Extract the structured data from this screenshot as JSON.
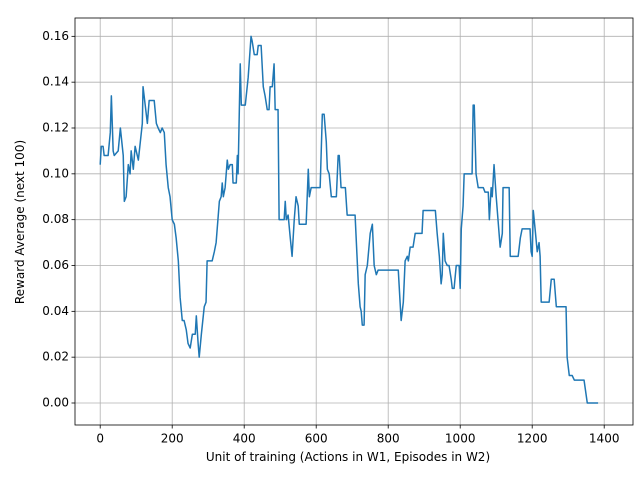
{
  "chart_data": {
    "type": "line",
    "x_label": "Unit of training (Actions in W1, Episodes in W2)",
    "y_label": "Reward Average (next 100)",
    "xlim": [
      -70,
      1480
    ],
    "ylim": [
      -0.0096,
      0.168
    ],
    "xticks": [
      0,
      200,
      400,
      600,
      800,
      1000,
      1200,
      1400
    ],
    "yticks": [
      {
        "value": 0,
        "label": "0.00"
      },
      {
        "value": 0.02,
        "label": "0.02"
      },
      {
        "value": 0.04,
        "label": "0.04"
      },
      {
        "value": 0.06,
        "label": "0.06"
      },
      {
        "value": 0.08,
        "label": "0.08"
      },
      {
        "value": 0.1,
        "label": "0.10"
      },
      {
        "value": 0.12,
        "label": "0.12"
      },
      {
        "value": 0.14,
        "label": "0.14"
      },
      {
        "value": 0.16,
        "label": "0.16"
      }
    ],
    "grid": true,
    "x": [
      0,
      3,
      8,
      11,
      22,
      28,
      31,
      36,
      39,
      50,
      56,
      64,
      67,
      72,
      78,
      83,
      86,
      92,
      97,
      106,
      117,
      119,
      125,
      131,
      136,
      150,
      156,
      161,
      167,
      172,
      178,
      183,
      189,
      194,
      200,
      206,
      211,
      217,
      222,
      228,
      233,
      239,
      244,
      250,
      256,
      264,
      267,
      272,
      275,
      281,
      289,
      294,
      297,
      311,
      317,
      322,
      331,
      336,
      339,
      342,
      347,
      353,
      356,
      361,
      367,
      369,
      378,
      381,
      383,
      389,
      392,
      403,
      411,
      419,
      422,
      428,
      436,
      439,
      447,
      453,
      458,
      464,
      469,
      472,
      478,
      483,
      486,
      494,
      497,
      511,
      514,
      517,
      522,
      528,
      533,
      539,
      544,
      550,
      553,
      572,
      578,
      581,
      586,
      611,
      617,
      622,
      628,
      631,
      636,
      642,
      656,
      661,
      664,
      669,
      681,
      686,
      708,
      711,
      717,
      722,
      725,
      728,
      733,
      736,
      742,
      750,
      756,
      761,
      767,
      772,
      828,
      833,
      836,
      842,
      847,
      853,
      856,
      861,
      869,
      875,
      894,
      897,
      931,
      936,
      942,
      947,
      950,
      953,
      958,
      964,
      969,
      975,
      978,
      983,
      989,
      997,
      1000,
      1003,
      1008,
      1011,
      1033,
      1036,
      1039,
      1044,
      1050,
      1064,
      1069,
      1078,
      1081,
      1086,
      1089,
      1094,
      1100,
      1106,
      1111,
      1117,
      1119,
      1136,
      1139,
      1161,
      1167,
      1172,
      1194,
      1197,
      1200,
      1203,
      1208,
      1214,
      1219,
      1222,
      1225,
      1247,
      1253,
      1261,
      1267,
      1294,
      1297,
      1303,
      1311,
      1317,
      1344,
      1353,
      1383
    ],
    "series": [
      {
        "color": "#1f77b4",
        "values": [
          0.104,
          0.112,
          0.112,
          0.108,
          0.108,
          0.118,
          0.134,
          0.11,
          0.108,
          0.11,
          0.12,
          0.108,
          0.088,
          0.09,
          0.104,
          0.1,
          0.11,
          0.102,
          0.112,
          0.106,
          0.122,
          0.138,
          0.13,
          0.122,
          0.132,
          0.132,
          0.122,
          0.12,
          0.118,
          0.12,
          0.118,
          0.104,
          0.094,
          0.09,
          0.08,
          0.078,
          0.072,
          0.062,
          0.046,
          0.036,
          0.036,
          0.032,
          0.026,
          0.024,
          0.03,
          0.03,
          0.038,
          0.026,
          0.02,
          0.03,
          0.042,
          0.044,
          0.062,
          0.062,
          0.066,
          0.07,
          0.088,
          0.09,
          0.096,
          0.09,
          0.094,
          0.106,
          0.102,
          0.104,
          0.104,
          0.096,
          0.096,
          0.108,
          0.1,
          0.148,
          0.13,
          0.13,
          0.142,
          0.16,
          0.158,
          0.152,
          0.152,
          0.156,
          0.156,
          0.138,
          0.134,
          0.128,
          0.128,
          0.138,
          0.138,
          0.148,
          0.128,
          0.128,
          0.08,
          0.08,
          0.088,
          0.08,
          0.082,
          0.072,
          0.064,
          0.08,
          0.09,
          0.086,
          0.078,
          0.078,
          0.102,
          0.09,
          0.094,
          0.094,
          0.126,
          0.126,
          0.114,
          0.102,
          0.1,
          0.09,
          0.09,
          0.108,
          0.108,
          0.094,
          0.094,
          0.082,
          0.082,
          0.072,
          0.052,
          0.042,
          0.04,
          0.034,
          0.034,
          0.056,
          0.06,
          0.074,
          0.078,
          0.06,
          0.056,
          0.058,
          0.058,
          0.044,
          0.036,
          0.044,
          0.062,
          0.064,
          0.062,
          0.068,
          0.068,
          0.074,
          0.074,
          0.084,
          0.084,
          0.074,
          0.064,
          0.052,
          0.056,
          0.074,
          0.062,
          0.06,
          0.06,
          0.054,
          0.05,
          0.05,
          0.06,
          0.06,
          0.05,
          0.076,
          0.086,
          0.1,
          0.1,
          0.13,
          0.13,
          0.1,
          0.094,
          0.094,
          0.092,
          0.092,
          0.08,
          0.094,
          0.09,
          0.104,
          0.09,
          0.078,
          0.068,
          0.074,
          0.094,
          0.094,
          0.064,
          0.064,
          0.072,
          0.076,
          0.076,
          0.066,
          0.064,
          0.084,
          0.076,
          0.066,
          0.07,
          0.064,
          0.044,
          0.044,
          0.054,
          0.054,
          0.042,
          0.042,
          0.02,
          0.012,
          0.012,
          0.01,
          0.01,
          0.0,
          0.0
        ]
      }
    ]
  }
}
